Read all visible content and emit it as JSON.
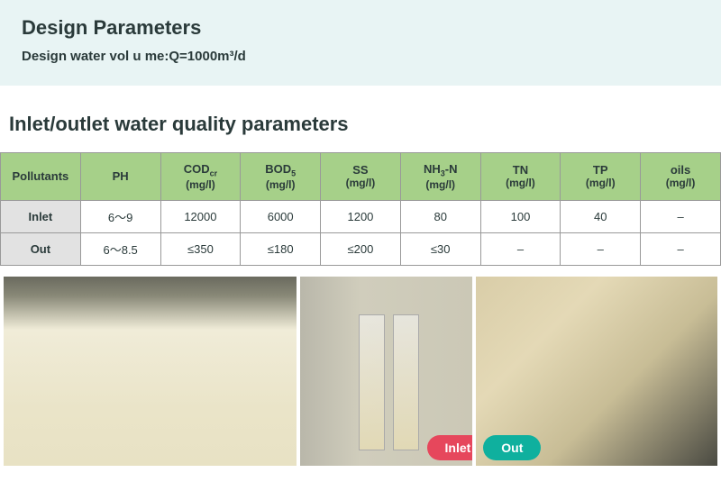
{
  "header": {
    "title": "Design Parameters",
    "subtitle": "Design water vol u me:Q=1000m³/d"
  },
  "section_heading": "Inlet/outlet water quality parameters",
  "table": {
    "header_bg": "#a6d089",
    "rowhead_bg": "#e2e2e2",
    "border_color": "#999999",
    "text_color": "#2a3a3a",
    "columns": [
      {
        "label": "Pollutants",
        "unit": ""
      },
      {
        "label": "PH",
        "unit": ""
      },
      {
        "label": "COD",
        "sub": "cr",
        "unit": "(mg/l)"
      },
      {
        "label": "BOD",
        "sub": "5",
        "unit": "(mg/l)"
      },
      {
        "label": "SS",
        "unit": "(mg/l)"
      },
      {
        "label": "NH",
        "sub": "3",
        "tail": "-N",
        "unit": "(mg/l)"
      },
      {
        "label": "TN",
        "unit": "(mg/l)"
      },
      {
        "label": "TP",
        "unit": "(mg/l)"
      },
      {
        "label": "oils",
        "unit": "(mg/l)"
      }
    ],
    "rows": [
      {
        "head": "Inlet",
        "cells": [
          "6～9",
          "12000",
          "6000",
          "1200",
          "80",
          "100",
          "40",
          "–"
        ]
      },
      {
        "head": "Out",
        "cells": [
          "6～8.5",
          "≤350",
          "≤180",
          "≤200",
          "≤30",
          "–",
          "–",
          "–"
        ]
      }
    ]
  },
  "photos": {
    "inlet_label": "Inlet",
    "out_label": "Out",
    "inlet_badge_color": "#e6475c",
    "out_badge_color": "#0fb09e"
  },
  "colors": {
    "top_bg": "#e8f4f4",
    "page_bg": "#ffffff"
  }
}
